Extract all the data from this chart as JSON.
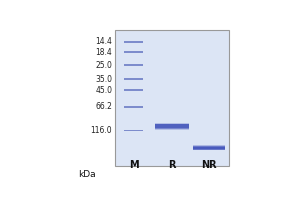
{
  "bg_color": "#dce5f5",
  "gel_border_color": "#999999",
  "band_color_marker": "#5566bb",
  "band_color_sample": "#4455bb",
  "kda_label": "kDa",
  "lane_labels": [
    "M",
    "R",
    "NR"
  ],
  "marker_kda": [
    116.0,
    66.2,
    45.0,
    35.0,
    25.0,
    18.4,
    14.4
  ],
  "marker_label_kda": [
    "116.0",
    "66.2",
    "45.0",
    "35.0",
    "25.0",
    "18.4",
    "14.4"
  ],
  "r_band_kda": 105.0,
  "nr_band_kda": 175.0,
  "kda_min": 11.0,
  "kda_max": 270.0,
  "outer_bg": "#ffffff"
}
